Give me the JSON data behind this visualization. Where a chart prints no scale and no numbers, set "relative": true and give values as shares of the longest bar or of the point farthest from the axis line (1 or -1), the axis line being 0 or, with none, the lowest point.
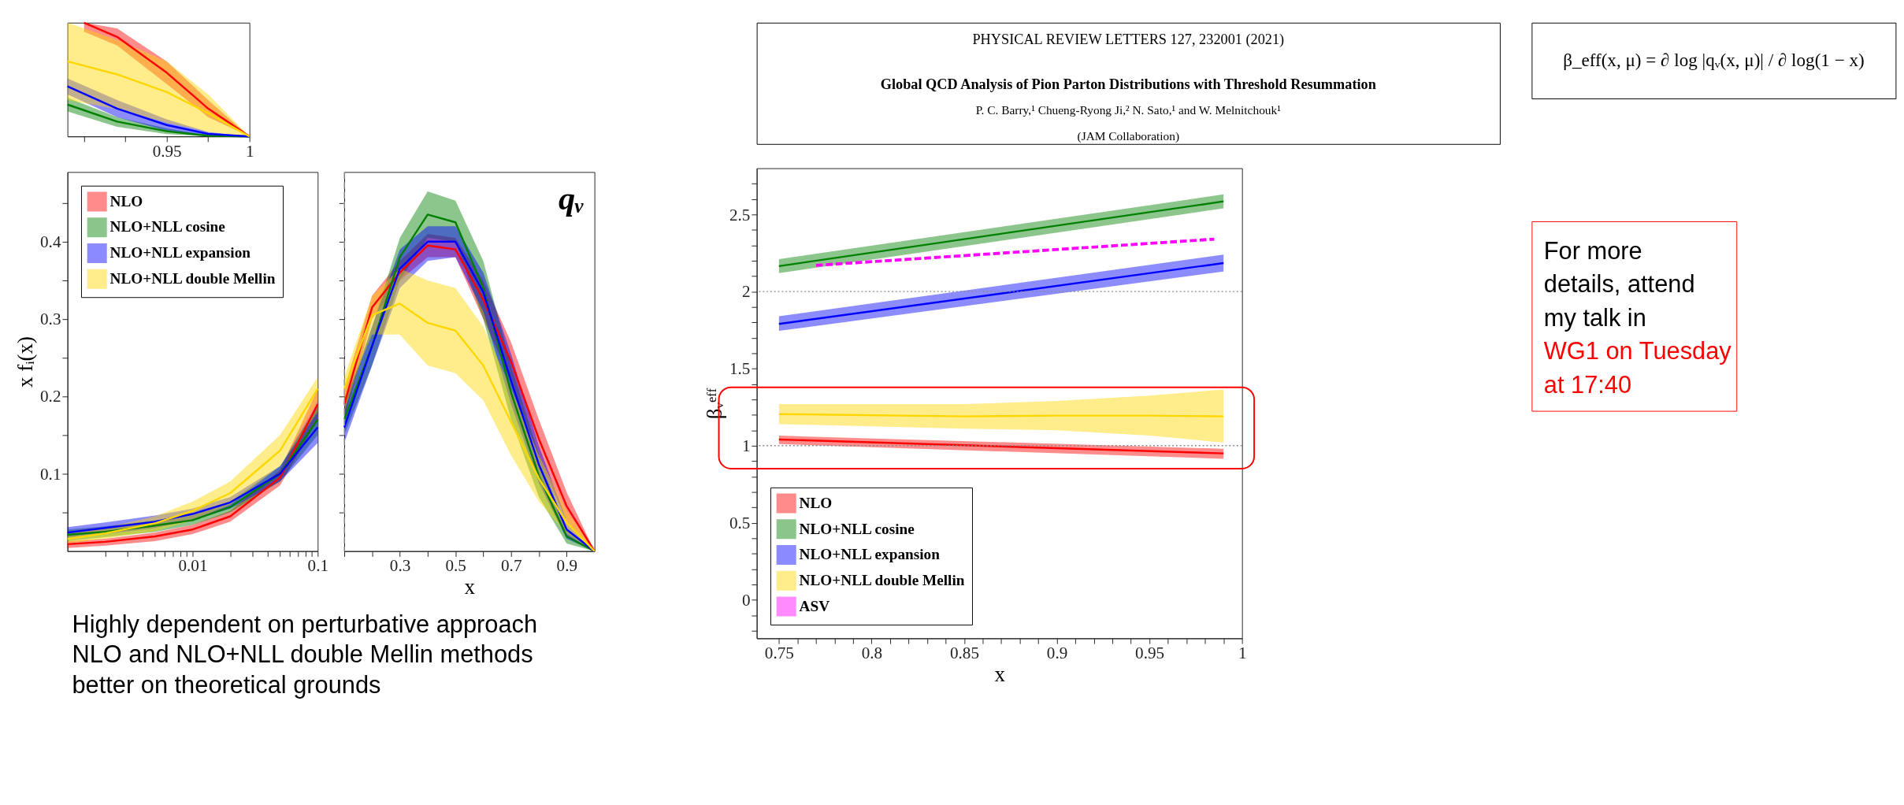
{
  "chart_data": [
    {
      "type": "line",
      "relative": true,
      "xlim": [
        0.89,
        1
      ],
      "tick_labels": "x",
      "xticks": [
        {
          "value": 0.9,
          "label": null
        },
        {
          "value": 0.925,
          "label": null
        },
        0.95,
        {
          "value": 0.975,
          "label": null
        },
        1
      ],
      "series": [
        {
          "color": "#ff0000",
          "x": [
            0.9,
            0.92,
            0.95,
            0.975,
            1
          ],
          "values": [
            1,
            0.875,
            0.56,
            0.245,
            0
          ],
          "lower": [
            0.92,
            0.8,
            0.46,
            0.17,
            0
          ],
          "upper": [
            1,
            0.95,
            0.66,
            0.32,
            0
          ]
        },
        {
          "color": "#008000",
          "x": [
            0.89,
            0.92,
            0.95,
            0.975,
            1
          ],
          "values": [
            0.28,
            0.13,
            0.045,
            0.006,
            0
          ],
          "lower": [
            0.22,
            0.085,
            0.02,
            0,
            0
          ],
          "upper": [
            0.34,
            0.17,
            0.07,
            0.012,
            0
          ]
        },
        {
          "color": "#0000ff",
          "x": [
            0.89,
            0.92,
            0.95,
            0.975,
            1
          ],
          "values": [
            0.44,
            0.245,
            0.1,
            0.022,
            0
          ],
          "lower": [
            0.37,
            0.17,
            0.05,
            0.005,
            0
          ],
          "upper": [
            0.51,
            0.32,
            0.15,
            0.04,
            0
          ]
        },
        {
          "color": "#ffd700",
          "x": [
            0.89,
            0.92,
            0.95,
            0.975,
            1
          ],
          "values": [
            0.66,
            0.545,
            0.39,
            0.205,
            0
          ],
          "lower": [
            0.32,
            0.24,
            0.12,
            0.04,
            0
          ],
          "upper": [
            1,
            0.85,
            0.66,
            0.37,
            0
          ]
        }
      ]
    },
    {
      "type": "line",
      "log": "x",
      "xlim": [
        0.001,
        0.1
      ],
      "ylim": [
        0,
        0.49
      ],
      "legend": "top left",
      "ylabel": "x fᵢ(x)",
      "xticks": [
        {
          "value": 0.002,
          "label": null
        },
        {
          "value": 0.003,
          "label": null
        },
        {
          "value": 0.004,
          "label": null
        },
        {
          "value": 0.005,
          "label": null
        },
        {
          "value": 0.006,
          "label": null
        },
        {
          "value": 0.007,
          "label": null
        },
        {
          "value": 0.008,
          "label": null
        },
        {
          "value": 0.009,
          "label": null
        },
        0.01,
        {
          "value": 0.02,
          "label": null
        },
        {
          "value": 0.03,
          "label": null
        },
        {
          "value": 0.04,
          "label": null
        },
        {
          "value": 0.05,
          "label": null
        },
        {
          "value": 0.06,
          "label": null
        },
        {
          "value": 0.07,
          "label": null
        },
        {
          "value": 0.08,
          "label": null
        },
        {
          "value": 0.09,
          "label": null
        },
        0.1
      ],
      "yticks": [
        {
          "value": 0.05,
          "label": null
        },
        0.1,
        {
          "value": 0.15,
          "label": null
        },
        0.2,
        {
          "value": 0.25,
          "label": null
        },
        0.3,
        {
          "value": 0.35,
          "label": null
        },
        0.4,
        {
          "value": 0.45,
          "label": null
        }
      ],
      "x": [
        0.001,
        0.002,
        0.005,
        0.01,
        0.02,
        0.05,
        0.1
      ],
      "series": [
        {
          "name": "NLO",
          "color": "#ff0000",
          "values": [
            0.009,
            0.012,
            0.019,
            0.028,
            0.045,
            0.095,
            0.19
          ],
          "lower": [
            0.004,
            0.007,
            0.013,
            0.022,
            0.038,
            0.085,
            0.17
          ],
          "upper": [
            0.013,
            0.016,
            0.024,
            0.034,
            0.052,
            0.105,
            0.21
          ]
        },
        {
          "name": "NLO+NLL cosine",
          "color": "#008000",
          "values": [
            0.021,
            0.025,
            0.033,
            0.04,
            0.057,
            0.1,
            0.17
          ],
          "lower": [
            0.013,
            0.018,
            0.025,
            0.034,
            0.05,
            0.09,
            0.15
          ],
          "upper": [
            0.028,
            0.032,
            0.04,
            0.046,
            0.064,
            0.11,
            0.19
          ]
        },
        {
          "name": "NLO+NLL expansion",
          "color": "#0000ff",
          "values": [
            0.024,
            0.03,
            0.038,
            0.048,
            0.063,
            0.1,
            0.16
          ],
          "lower": [
            0.016,
            0.022,
            0.03,
            0.04,
            0.055,
            0.09,
            0.14
          ],
          "upper": [
            0.031,
            0.037,
            0.046,
            0.055,
            0.07,
            0.11,
            0.18
          ]
        },
        {
          "name": "NLO+NLL double Mellin",
          "color": "#ffd700",
          "values": [
            0.016,
            0.023,
            0.036,
            0.052,
            0.075,
            0.13,
            0.21
          ],
          "lower": [
            0.01,
            0.016,
            0.026,
            0.04,
            0.06,
            0.11,
            0.195
          ],
          "upper": [
            0.022,
            0.03,
            0.045,
            0.064,
            0.09,
            0.15,
            0.225
          ]
        }
      ]
    },
    {
      "type": "line",
      "xlim": [
        0.1,
        1
      ],
      "ylim": [
        0,
        0.49
      ],
      "tick_labels": "x",
      "xlabel": "x",
      "xticks": [
        {
          "value": 0.1,
          "label": null
        },
        {
          "value": 0.2,
          "label": null
        },
        0.3,
        {
          "value": 0.4,
          "label": null
        },
        0.5,
        {
          "value": 0.6,
          "label": null
        },
        0.7,
        {
          "value": 0.8,
          "label": null
        },
        0.9
      ],
      "yticks": [
        {
          "value": 0.05,
          "label": null
        },
        {
          "value": 0.1,
          "label": null
        },
        {
          "value": 0.15,
          "label": null
        },
        {
          "value": 0.2,
          "label": null
        },
        {
          "value": 0.25,
          "label": null
        },
        {
          "value": 0.3,
          "label": null
        },
        {
          "value": 0.35,
          "label": null
        },
        {
          "value": 0.4,
          "label": null
        },
        {
          "value": 0.45,
          "label": null
        }
      ],
      "annotations": [
        "qᵥ"
      ],
      "ref_lines": [
        {
          "axis": "x",
          "value": 0.1,
          "color": "#aaaaaa",
          "line_style": "dashed"
        }
      ],
      "x": [
        0.1,
        0.2,
        0.3,
        0.4,
        0.5,
        0.6,
        0.7,
        0.8,
        0.9,
        1
      ],
      "series": [
        {
          "color": "#ff0000",
          "values": [
            0.19,
            0.315,
            0.36,
            0.395,
            0.39,
            0.325,
            0.245,
            0.145,
            0.058,
            0
          ],
          "lower": [
            0.17,
            0.3,
            0.35,
            0.38,
            0.38,
            0.3,
            0.22,
            0.12,
            0.04,
            0
          ],
          "upper": [
            0.21,
            0.33,
            0.375,
            0.41,
            0.405,
            0.35,
            0.27,
            0.17,
            0.076,
            0
          ]
        },
        {
          "color": "#008000",
          "values": [
            0.17,
            0.265,
            0.38,
            0.435,
            0.425,
            0.34,
            0.205,
            0.097,
            0.019,
            0
          ],
          "lower": [
            0.15,
            0.24,
            0.35,
            0.405,
            0.4,
            0.3,
            0.17,
            0.07,
            0.01,
            0
          ],
          "upper": [
            0.19,
            0.29,
            0.405,
            0.465,
            0.453,
            0.375,
            0.24,
            0.124,
            0.028,
            0
          ]
        },
        {
          "color": "#0000ff",
          "values": [
            0.16,
            0.265,
            0.365,
            0.4,
            0.4,
            0.335,
            0.22,
            0.112,
            0.028,
            0
          ],
          "lower": [
            0.14,
            0.24,
            0.34,
            0.375,
            0.38,
            0.31,
            0.19,
            0.088,
            0.016,
            0
          ],
          "upper": [
            0.18,
            0.29,
            0.39,
            0.42,
            0.42,
            0.36,
            0.255,
            0.136,
            0.04,
            0
          ]
        },
        {
          "color": "#ffd700",
          "values": [
            0.21,
            0.305,
            0.32,
            0.295,
            0.285,
            0.24,
            0.167,
            0.094,
            0.037,
            0
          ],
          "lower": [
            0.195,
            0.28,
            0.28,
            0.24,
            0.23,
            0.195,
            0.124,
            0.064,
            0.022,
            0
          ],
          "upper": [
            0.225,
            0.33,
            0.365,
            0.35,
            0.34,
            0.29,
            0.21,
            0.124,
            0.052,
            0
          ]
        }
      ]
    },
    {
      "type": "other",
      "annotations": [
        "Highly dependent on perturbative approach",
        "NLO and NLO+NLL double Mellin methods better on theoretical grounds"
      ]
    },
    {
      "type": "other",
      "title": "Global QCD Analysis of Pion Parton Distributions with Threshold Resummation",
      "annotations": [
        "PHYSICAL REVIEW LETTERS 127, 232001 (2021)",
        "P. C. Barry,¹ Chueng-Ryong Ji,² N. Sato,¹ and W. Melnitchouk¹",
        "(JAM Collaboration)"
      ]
    },
    {
      "type": "line",
      "xlim": [
        0.738,
        1.0
      ],
      "ylim": [
        -0.25,
        2.8
      ],
      "xlabel": "x",
      "ylabel": "βᵥᵉᶠᶠ",
      "legend": "bottom left",
      "xticks": [
        0.75,
        {
          "value": 0.76,
          "label": null
        },
        {
          "value": 0.77,
          "label": null
        },
        {
          "value": 0.78,
          "label": null
        },
        {
          "value": 0.79,
          "label": null
        },
        0.8,
        {
          "value": 0.81,
          "label": null
        },
        {
          "value": 0.82,
          "label": null
        },
        {
          "value": 0.83,
          "label": null
        },
        {
          "value": 0.84,
          "label": null
        },
        0.85,
        {
          "value": 0.86,
          "label": null
        },
        {
          "value": 0.87,
          "label": null
        },
        {
          "value": 0.88,
          "label": null
        },
        {
          "value": 0.89,
          "label": null
        },
        0.9,
        {
          "value": 0.91,
          "label": null
        },
        {
          "value": 0.92,
          "label": null
        },
        {
          "value": 0.93,
          "label": null
        },
        {
          "value": 0.94,
          "label": null
        },
        0.95,
        {
          "value": 0.96,
          "label": null
        },
        {
          "value": 0.97,
          "label": null
        },
        {
          "value": 0.98,
          "label": null
        },
        {
          "value": 0.99,
          "label": null
        },
        1
      ],
      "yticks": [
        {
          "value": -0.2,
          "label": null
        },
        {
          "value": -0.1,
          "label": null
        },
        0,
        {
          "value": 0.1,
          "label": null
        },
        {
          "value": 0.2,
          "label": null
        },
        {
          "value": 0.3,
          "label": null
        },
        {
          "value": 0.4,
          "label": null
        },
        0.5,
        {
          "value": 0.6,
          "label": null
        },
        {
          "value": 0.7,
          "label": null
        },
        {
          "value": 0.8,
          "label": null
        },
        {
          "value": 0.9,
          "label": null
        },
        1,
        {
          "value": 1.1,
          "label": null
        },
        {
          "value": 1.2,
          "label": null
        },
        {
          "value": 1.3,
          "label": null
        },
        {
          "value": 1.4,
          "label": null
        },
        1.5,
        {
          "value": 1.6,
          "label": null
        },
        {
          "value": 1.7,
          "label": null
        },
        {
          "value": 1.8,
          "label": null
        },
        {
          "value": 1.9,
          "label": null
        },
        2,
        {
          "value": 2.1,
          "label": null
        },
        {
          "value": 2.2,
          "label": null
        },
        {
          "value": 2.3,
          "label": null
        },
        {
          "value": 2.4,
          "label": null
        },
        2.5,
        {
          "value": 2.6,
          "label": null
        },
        {
          "value": 2.7,
          "label": null
        }
      ],
      "ref_lines": [
        {
          "axis": "y",
          "value": 1,
          "color": "#888888",
          "line_style": "dotted"
        },
        {
          "axis": "y",
          "value": 2,
          "color": "#888888",
          "line_style": "dotted"
        }
      ],
      "series": [
        {
          "name": "NLO",
          "color": "#ff0000",
          "x": [
            0.75,
            0.99
          ],
          "values": [
            1.04,
            0.95
          ],
          "lower": [
            1.01,
            0.915
          ],
          "upper": [
            1.065,
            0.98
          ]
        },
        {
          "name": "NLO+NLL cosine",
          "color": "#008000",
          "x": [
            0.75,
            0.99
          ],
          "values": [
            2.165,
            2.585
          ],
          "lower": [
            2.12,
            2.54
          ],
          "upper": [
            2.21,
            2.63
          ]
        },
        {
          "name": "NLO+NLL expansion",
          "color": "#0000ff",
          "x": [
            0.75,
            0.99
          ],
          "values": [
            1.79,
            2.185
          ],
          "lower": [
            1.745,
            2.13
          ],
          "upper": [
            1.84,
            2.24
          ]
        },
        {
          "name": "NLO+NLL double Mellin",
          "color": "#ffd700",
          "x": [
            0.75,
            0.85,
            0.9,
            0.95,
            0.99
          ],
          "values": [
            1.205,
            1.19,
            1.195,
            1.195,
            1.19
          ],
          "lower": [
            1.14,
            1.11,
            1.1,
            1.065,
            1.02
          ],
          "upper": [
            1.27,
            1.27,
            1.29,
            1.325,
            1.365
          ]
        },
        {
          "name": "ASV",
          "type": "line",
          "line_style": "dashed",
          "color": "#ff00ff",
          "x": [
            0.77,
            0.985
          ],
          "values": [
            2.17,
            2.34
          ]
        }
      ]
    },
    {
      "type": "other",
      "annotations": [
        "β_eff(x, μ) = ∂ log |qᵥ(x, μ)| / ∂ log(1 − x)"
      ]
    },
    {
      "type": "other",
      "annotations": [
        "For more details, attend my talk in",
        "WG1 on Tuesday at 17:40"
      ],
      "colors": [
        "#000000",
        "#ff0000"
      ]
    }
  ]
}
